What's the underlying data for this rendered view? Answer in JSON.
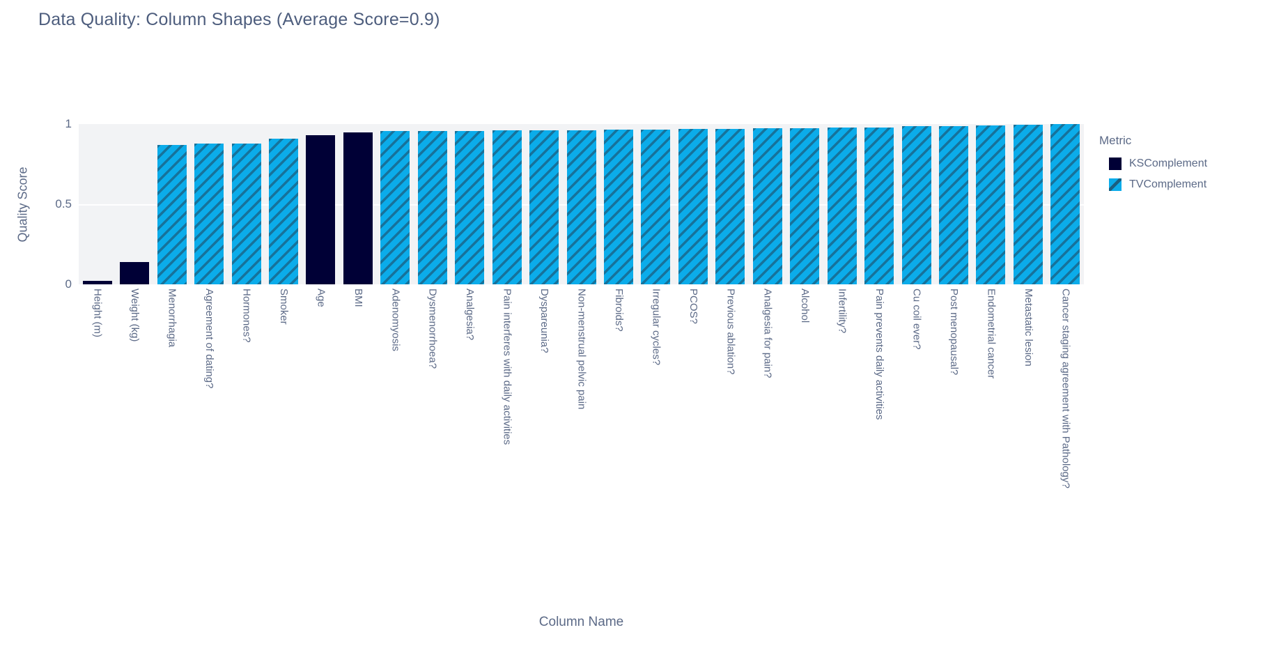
{
  "chart_data": {
    "type": "bar",
    "title": "Data Quality: Column Shapes (Average Score=0.9)",
    "xlabel": "Column Name",
    "ylabel": "Quality Score",
    "ylim": [
      0,
      1
    ],
    "yticks": [
      "0",
      "0.5",
      "1"
    ],
    "grid": "horizontal white gridline at 0.5, light-gray plot background",
    "legend_title": "Metric",
    "legend_position": "right",
    "series": [
      {
        "name": "KSComplement",
        "color": "#000036",
        "pattern": "solid"
      },
      {
        "name": "TVComplement",
        "color": "#0BACEA",
        "pattern": "diagonal-hatch",
        "hatch_color": "#1F4C66"
      }
    ],
    "bars": [
      {
        "column": "Height (m)",
        "metric": "KSComplement",
        "value": 0.02
      },
      {
        "column": "Weight (kg)",
        "metric": "KSComplement",
        "value": 0.14
      },
      {
        "column": "Menorrhagia",
        "metric": "TVComplement",
        "value": 0.87
      },
      {
        "column": "Agreement of dating?",
        "metric": "TVComplement",
        "value": 0.88
      },
      {
        "column": "Hormones?",
        "metric": "TVComplement",
        "value": 0.88
      },
      {
        "column": "Smoker",
        "metric": "TVComplement",
        "value": 0.91
      },
      {
        "column": "Age",
        "metric": "KSComplement",
        "value": 0.93
      },
      {
        "column": "BMI",
        "metric": "KSComplement",
        "value": 0.95
      },
      {
        "column": "Adenomyosis",
        "metric": "TVComplement",
        "value": 0.955
      },
      {
        "column": "Dysmenorrhoea?",
        "metric": "TVComplement",
        "value": 0.955
      },
      {
        "column": "Analgesia?",
        "metric": "TVComplement",
        "value": 0.955
      },
      {
        "column": "Pain interferes with daily activities",
        "metric": "TVComplement",
        "value": 0.96
      },
      {
        "column": "Dyspareunia?",
        "metric": "TVComplement",
        "value": 0.96
      },
      {
        "column": "Non-menstrual pelvic pain",
        "metric": "TVComplement",
        "value": 0.96
      },
      {
        "column": "Fibroids?",
        "metric": "TVComplement",
        "value": 0.965
      },
      {
        "column": "Irregular cycles?",
        "metric": "TVComplement",
        "value": 0.965
      },
      {
        "column": "PCOS?",
        "metric": "TVComplement",
        "value": 0.97
      },
      {
        "column": "Previous ablation?",
        "metric": "TVComplement",
        "value": 0.97
      },
      {
        "column": "Analgesia for pain?",
        "metric": "TVComplement",
        "value": 0.975
      },
      {
        "column": "Alcohol",
        "metric": "TVComplement",
        "value": 0.975
      },
      {
        "column": "Infertility?",
        "metric": "TVComplement",
        "value": 0.98
      },
      {
        "column": "Pain prevents daily activities",
        "metric": "TVComplement",
        "value": 0.98
      },
      {
        "column": "Cu coil ever?",
        "metric": "TVComplement",
        "value": 0.985
      },
      {
        "column": "Post menopausal?",
        "metric": "TVComplement",
        "value": 0.985
      },
      {
        "column": "Endometrial cancer",
        "metric": "TVComplement",
        "value": 0.99
      },
      {
        "column": "Metastatic lesion",
        "metric": "TVComplement",
        "value": 0.995
      },
      {
        "column": "Cancer staging agreement with Pathology?",
        "metric": "TVComplement",
        "value": 1.0
      }
    ]
  }
}
